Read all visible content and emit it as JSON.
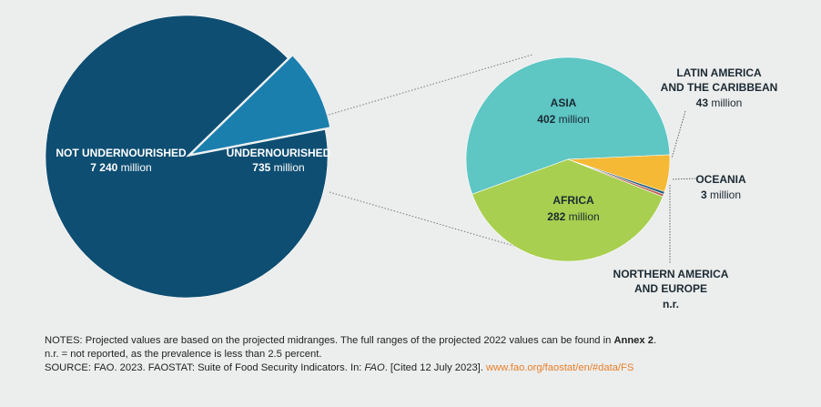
{
  "chart_data": [
    {
      "type": "pie",
      "slices": [
        {
          "label": "NOT UNDERNOURISHED",
          "value": 7240,
          "value_text": "7 240",
          "unit": "million",
          "color": "#0e4e72"
        },
        {
          "label": "UNDERNOURISHED",
          "value": 735,
          "value_text": "735",
          "unit": "million",
          "color": "#1b7fae"
        }
      ]
    },
    {
      "type": "pie",
      "slices": [
        {
          "label": "ASIA",
          "value": 402,
          "value_text": "402",
          "unit": "million",
          "color": "#5ec6c3"
        },
        {
          "label": "LATIN AMERICA AND THE CARIBBEAN",
          "label_lines": [
            "LATIN AMERICA",
            "AND THE CARIBBEAN"
          ],
          "value": 43,
          "value_text": "43",
          "unit": "million",
          "color": "#f6b936"
        },
        {
          "label": "OCEANIA",
          "value": 3,
          "value_text": "3",
          "unit": "million",
          "color": "#1d5f7b"
        },
        {
          "label": "NORTHERN AMERICA AND EUROPE",
          "label_lines": [
            "NORTHERN AMERICA",
            "AND EUROPE"
          ],
          "value": 3,
          "value_text": "n.r.",
          "unit": "",
          "color": "#c1655a"
        },
        {
          "label": "AFRICA",
          "value": 282,
          "value_text": "282",
          "unit": "million",
          "color": "#a8cf4f"
        }
      ]
    }
  ],
  "notes": {
    "line1_prefix": "NOTES: Projected values are based on the projected midranges. The full ranges of the projected 2022 values can be found in ",
    "line1_bold": "Annex 2",
    "line1_suffix": ".",
    "line2": "n.r. = not reported, as the prevalence is less than 2.5 percent.",
    "line3_prefix": "SOURCE: FAO. 2023. FAOSTAT: Suite of Food Security Indicators. In: ",
    "line3_italic": "FAO",
    "line3_mid": ". [Cited 12 July 2023]. ",
    "line3_link": "www.fao.org/faostat/en/#data/FS"
  }
}
